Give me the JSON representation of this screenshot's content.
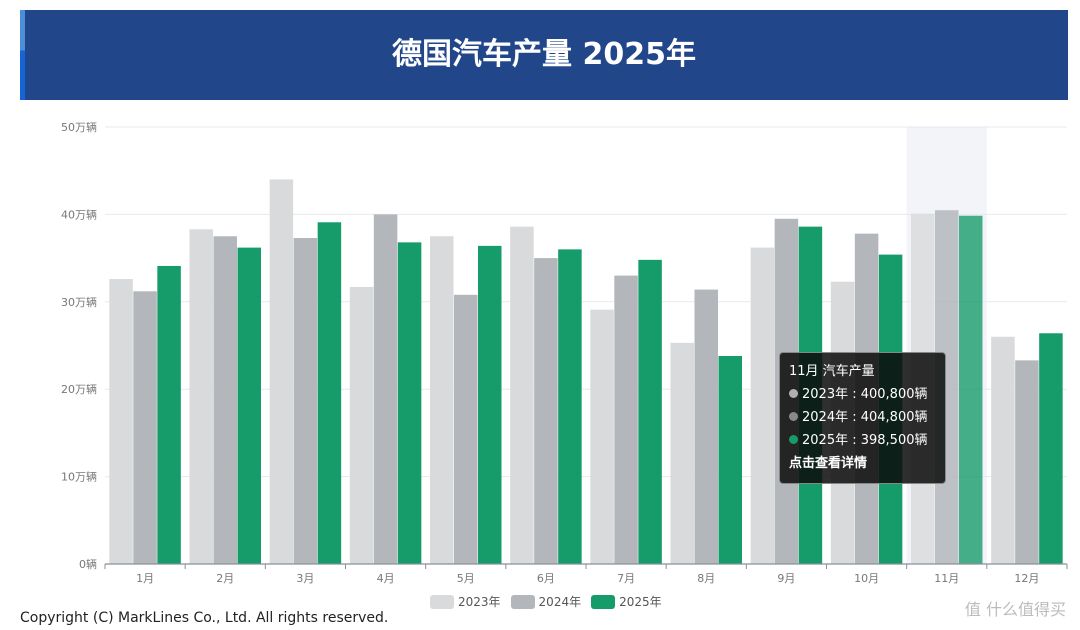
{
  "header": {
    "title": "德国汽车产量 2025年"
  },
  "colors": {
    "header_bg": "#21468a",
    "s2023": "#d9dadc",
    "s2024": "#b3b6ba",
    "s2025": "#169c6a",
    "highlight": "#f3f4fa"
  },
  "chart_data": {
    "type": "bar",
    "title": "德国汽车产量 2025年",
    "categories": [
      "1月",
      "2月",
      "3月",
      "4月",
      "5月",
      "6月",
      "7月",
      "8月",
      "9月",
      "10月",
      "11月",
      "12月"
    ],
    "y_ticks": [
      "0辆",
      "10万辆",
      "20万辆",
      "30万辆",
      "40万辆",
      "50万辆"
    ],
    "ylim": [
      0,
      500000
    ],
    "grid": true,
    "legend_position": "bottom",
    "series": [
      {
        "name": "2023年",
        "color": "#d9dadc",
        "values": [
          326000,
          383000,
          440000,
          317000,
          375000,
          386000,
          291000,
          253000,
          362000,
          323000,
          400800,
          260000
        ]
      },
      {
        "name": "2024年",
        "color": "#b3b6ba",
        "values": [
          312000,
          375000,
          373000,
          400000,
          308000,
          350000,
          330000,
          314000,
          395000,
          378000,
          404800,
          233000
        ]
      },
      {
        "name": "2025年",
        "color": "#169c6a",
        "values": [
          341000,
          362000,
          391000,
          368000,
          364000,
          360000,
          348000,
          238000,
          386000,
          354000,
          398500,
          264000
        ]
      }
    ],
    "highlighted_category": "11月"
  },
  "tooltip": {
    "title": "11月 汽车产量",
    "rows": [
      {
        "label": "2023年 : 400,800辆",
        "color": "#b0b0b0"
      },
      {
        "label": "2024年 : 404,800辆",
        "color": "#8a8a8a"
      },
      {
        "label": "2025年 : 398,500辆",
        "color": "#169c6a"
      }
    ],
    "link": "点击查看详情"
  },
  "footer": {
    "copyright": "Copyright (C) MarkLines Co., Ltd. All rights reserved.",
    "watermark": "值 什么值得买"
  }
}
